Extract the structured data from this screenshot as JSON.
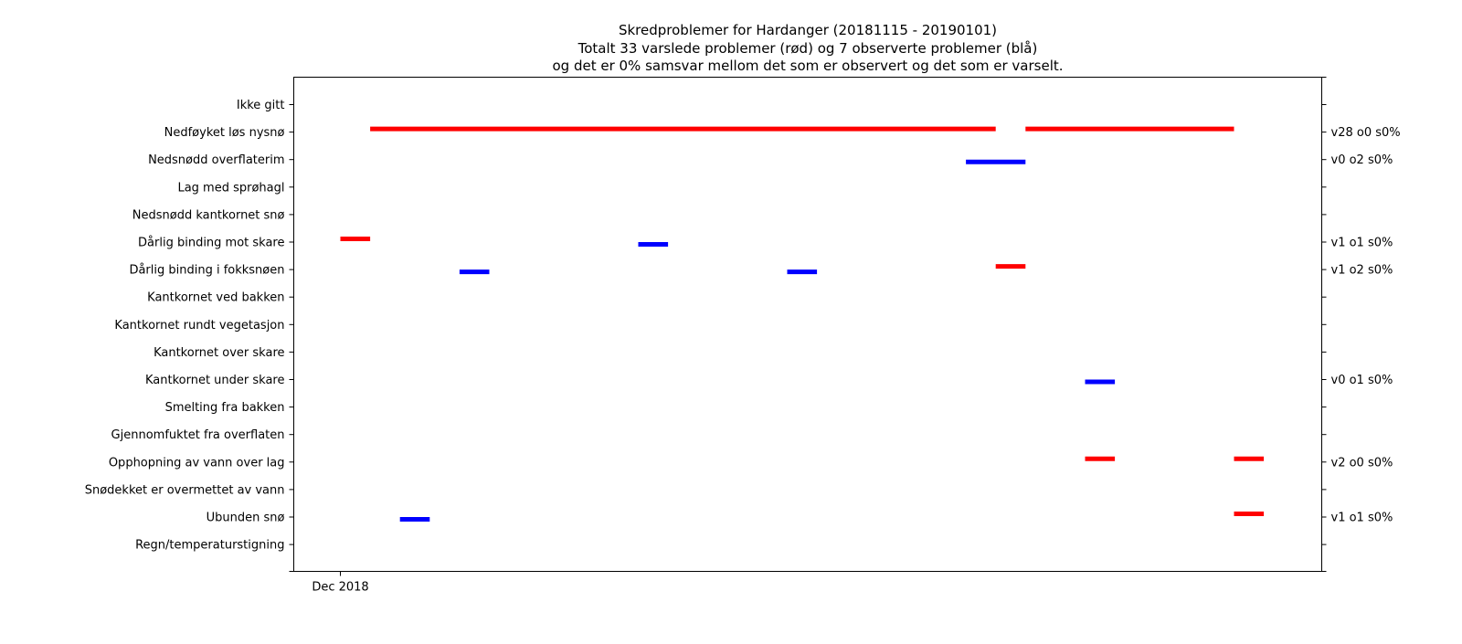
{
  "chart_data": {
    "type": "timeline",
    "title_lines": [
      "Skredproblemer for Hardanger (20181115 - 20190101)",
      "Totalt 33 varslede problemer (rød) og 7 observerte problemer (blå)",
      "og det er 0% samsvar mellom det som er observert og det som er varselt."
    ],
    "categories": [
      "Ikke gitt",
      "Nedføyket løs nysnø",
      "Nedsnødd overflaterim",
      "Lag med sprøhagl",
      "Nedsnødd kantkornet snø",
      "Dårlig binding mot skare",
      "Dårlig binding i fokksnøen",
      "Kantkornet ved bakken",
      "Kantkornet rundt vegetasjon",
      "Kantkornet over skare",
      "Kantkornet under skare",
      "Smelting fra bakken",
      "Gjennomfuktet fra overflaten",
      "Opphopning av vann over lag",
      "Snødekket er overmettet av vann",
      "Ubunden snø",
      "Regn/temperaturstigning"
    ],
    "right_labels": [
      "",
      "v28 o0 s0%",
      "v0 o2 s0%",
      "",
      "",
      "v1 o1 s0%",
      "v1 o2 s0%",
      "",
      "",
      "",
      "v0 o1 s0%",
      "",
      "",
      "v2 o0 s0%",
      "",
      "v1 o1 s0%",
      ""
    ],
    "x_range": [
      "2018-11-15",
      "2019-01-01"
    ],
    "x_ticks": [
      {
        "date": "2018-12-01",
        "label": "Dec 2018"
      }
    ],
    "colors": {
      "varslet": "#ff0000",
      "observert": "#0000ff"
    },
    "segments": [
      {
        "category": "Nedføyket løs nysnø",
        "kind": "varslet",
        "start": "2018-12-02",
        "end": "2018-12-23"
      },
      {
        "category": "Nedføyket løs nysnø",
        "kind": "varslet",
        "start": "2018-12-24",
        "end": "2018-12-31"
      },
      {
        "category": "Nedsnødd overflaterim",
        "kind": "observert",
        "start": "2018-12-22",
        "end": "2018-12-24"
      },
      {
        "category": "Dårlig binding mot skare",
        "kind": "varslet",
        "start": "2018-12-01",
        "end": "2018-12-02"
      },
      {
        "category": "Dårlig binding mot skare",
        "kind": "observert",
        "start": "2018-12-11",
        "end": "2018-12-12"
      },
      {
        "category": "Dårlig binding i fokksnøen",
        "kind": "varslet",
        "start": "2018-12-23",
        "end": "2018-12-24"
      },
      {
        "category": "Dårlig binding i fokksnøen",
        "kind": "observert",
        "start": "2018-12-05",
        "end": "2018-12-06"
      },
      {
        "category": "Dårlig binding i fokksnøen",
        "kind": "observert",
        "start": "2018-12-16",
        "end": "2018-12-17"
      },
      {
        "category": "Kantkornet under skare",
        "kind": "observert",
        "start": "2018-12-26",
        "end": "2018-12-27"
      },
      {
        "category": "Opphopning av vann over lag",
        "kind": "varslet",
        "start": "2018-12-26",
        "end": "2018-12-27"
      },
      {
        "category": "Opphopning av vann over lag",
        "kind": "varslet",
        "start": "2018-12-31",
        "end": "2019-01-01"
      },
      {
        "category": "Ubunden snø",
        "kind": "varslet",
        "start": "2018-12-31",
        "end": "2019-01-01"
      },
      {
        "category": "Ubunden snø",
        "kind": "observert",
        "start": "2018-12-03",
        "end": "2018-12-04"
      }
    ]
  }
}
